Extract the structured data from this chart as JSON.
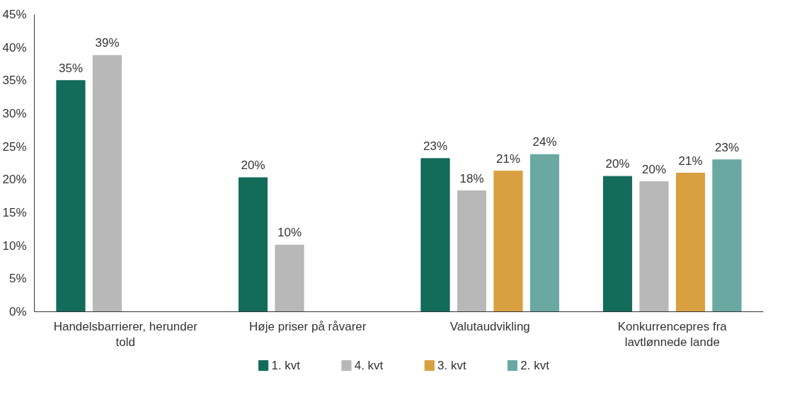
{
  "chart_data": {
    "type": "bar",
    "categories": [
      "Handelsbarrierer, herunder told",
      "Høje priser på råvarer",
      "Valutaudvikling",
      "Konkurrencepres fra lavtlønnede lande"
    ],
    "series": [
      {
        "name": "1. kvt",
        "color": "#136b5a",
        "values": [
          35.0,
          20.3,
          23.2,
          20.5
        ],
        "value_labels": [
          "35%",
          "20%",
          "23%",
          "20%"
        ]
      },
      {
        "name": "4. kvt",
        "color": "#b8b8b8",
        "values": [
          38.8,
          10.1,
          18.3,
          19.7
        ],
        "value_labels": [
          "39%",
          "10%",
          "18%",
          "20%"
        ]
      },
      {
        "name": "3. kvt",
        "color": "#d9a042",
        "values": [
          null,
          null,
          21.3,
          21.0
        ],
        "value_labels": [
          null,
          null,
          "21%",
          "21%"
        ]
      },
      {
        "name": "2. kvt",
        "color": "#6aa8a2",
        "values": [
          null,
          null,
          23.8,
          23.0
        ],
        "value_labels": [
          null,
          null,
          "24%",
          "23%"
        ]
      }
    ],
    "ylim": [
      0,
      45
    ],
    "yticks": [
      {
        "value": 0,
        "label": "0%"
      },
      {
        "value": 5,
        "label": "5%"
      },
      {
        "value": 10,
        "label": "10%"
      },
      {
        "value": 15,
        "label": "15%"
      },
      {
        "value": 20,
        "label": "20%"
      },
      {
        "value": 25,
        "label": "25%"
      },
      {
        "value": 30,
        "label": "30%"
      },
      {
        "value": 35,
        "label": "35%"
      },
      {
        "value": 40,
        "label": "40%"
      },
      {
        "value": 45,
        "label": "45%"
      }
    ],
    "grid": false,
    "legend": "bottom"
  }
}
